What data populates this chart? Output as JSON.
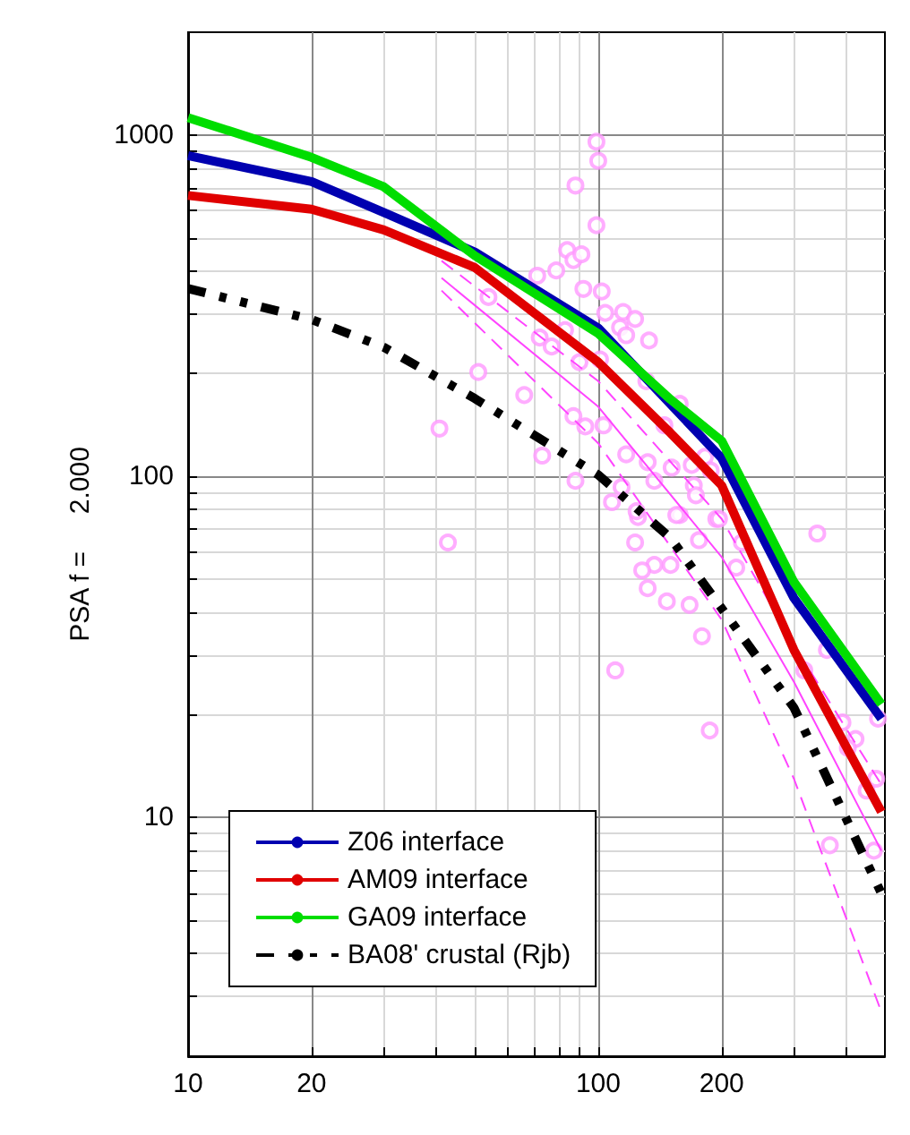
{
  "chart_data": {
    "type": "line",
    "ylabel": "PSA f =     2.000",
    "log": "xy",
    "grid": true,
    "legend": "bottom left",
    "xlim": [
      10,
      500
    ],
    "ylim": [
      2,
      2000
    ],
    "xticks": [
      10,
      20,
      {
        "value": 30,
        "label": null
      },
      {
        "value": 40,
        "label": null
      },
      {
        "value": 50,
        "label": null
      },
      {
        "value": 60,
        "label": null
      },
      {
        "value": 70,
        "label": null
      },
      {
        "value": 80,
        "label": null
      },
      {
        "value": 90,
        "label": null
      },
      100,
      200,
      {
        "value": 300,
        "label": null
      },
      {
        "value": 400,
        "label": null
      }
    ],
    "yticks": [
      {
        "value": 3,
        "label": null
      },
      {
        "value": 4,
        "label": null
      },
      {
        "value": 5,
        "label": null
      },
      {
        "value": 6,
        "label": null
      },
      {
        "value": 7,
        "label": null
      },
      {
        "value": 8,
        "label": null
      },
      {
        "value": 9,
        "label": null
      },
      10,
      {
        "value": 20,
        "label": null
      },
      {
        "value": 30,
        "label": null
      },
      {
        "value": 40,
        "label": null
      },
      {
        "value": 50,
        "label": null
      },
      {
        "value": 60,
        "label": null
      },
      {
        "value": 70,
        "label": null
      },
      {
        "value": 80,
        "label": null
      },
      {
        "value": 90,
        "label": null
      },
      100,
      {
        "value": 200,
        "label": null
      },
      {
        "value": 300,
        "label": null
      },
      {
        "value": 400,
        "label": null
      },
      {
        "value": 500,
        "label": null
      },
      {
        "value": 600,
        "label": null
      },
      {
        "value": 700,
        "label": null
      },
      {
        "value": 800,
        "label": null
      },
      {
        "value": 900,
        "label": null
      },
      1000
    ],
    "series": [
      {
        "type": "scatter",
        "color": "#ff99ff",
        "marker": "circle",
        "x": [
          99,
          100,
          88,
          99,
          84,
          87,
          91,
          79,
          71,
          92,
          102,
          54,
          104,
          115,
          123,
          113,
          117,
          133,
          83,
          72,
          77,
          90,
          101,
          51,
          131,
          158,
          145,
          66,
          41,
          87,
          93,
          103,
          73,
          117,
          132,
          182,
          151,
          169,
          188,
          88,
          114,
          171,
          137,
          173,
          108,
          158,
          194,
          125,
          342,
          43,
          124,
          123,
          155,
          176,
          137,
          128,
          150,
          217,
          197,
          224,
          132,
          147,
          167,
          179,
          110,
          187,
          361,
          318,
          394,
          424,
          406,
          367,
          470,
          451,
          476,
          481
        ],
        "values": [
          955,
          840,
          711,
          544,
          460,
          430,
          447,
          401,
          387,
          354,
          348,
          335,
          301,
          303,
          289,
          273,
          259,
          250,
          268,
          255,
          240,
          216,
          220,
          202,
          190,
          163,
          141,
          173,
          138,
          150,
          140,
          141,
          115,
          116,
          110,
          114,
          106,
          108,
          104,
          97,
          93,
          94,
          97,
          88,
          84,
          77,
          75,
          76,
          68,
          64,
          79,
          64,
          77,
          65,
          55,
          53,
          55,
          54,
          75,
          64,
          47,
          43,
          42,
          34,
          27,
          18,
          31,
          27,
          19,
          17,
          16,
          8.3,
          8,
          12,
          13,
          19.5
        ]
      },
      {
        "type": "line",
        "color": "#ff44ff",
        "marker": "none",
        "line_style": "dashed",
        "x": [
          41.5,
          100,
          200,
          300,
          490
        ],
        "values": [
          428,
          190,
          75,
          32,
          12.5
        ]
      },
      {
        "type": "line",
        "color": "#ff44ff",
        "marker": "none",
        "line_style": "solid",
        "x": [
          41.5,
          100,
          200,
          300,
          490
        ],
        "values": [
          381,
          160,
          58,
          25,
          8
        ]
      },
      {
        "type": "line",
        "color": "#ff44ff",
        "marker": "none",
        "line_style": "dashed",
        "x": [
          41.5,
          100,
          200,
          300,
          490
        ],
        "values": [
          350,
          125,
          38,
          13,
          2.7
        ]
      },
      {
        "name": "Z06 interface",
        "color": "#0000b0",
        "marker": "none",
        "line_style": "solid",
        "x": [
          10,
          20,
          30,
          50,
          100,
          200,
          300,
          490
        ],
        "values": [
          870,
          730,
          593,
          454,
          272,
          113,
          44,
          19.5
        ]
      },
      {
        "name": "AM09 interface",
        "color": "#e00000",
        "marker": "none",
        "line_style": "solid",
        "x": [
          10,
          20,
          30,
          50,
          100,
          150,
          200,
          300,
          490
        ],
        "values": [
          665,
          606,
          527,
          409,
          216,
          134,
          94,
          31,
          10.4
        ]
      },
      {
        "name": "GA09 interface",
        "color": "#00dd00",
        "marker": "none",
        "line_style": "solid",
        "x": [
          10,
          20,
          30,
          50,
          100,
          150,
          200,
          300,
          490
        ],
        "values": [
          1124,
          860,
          705,
          443,
          262,
          168,
          127,
          49,
          21.5
        ]
      },
      {
        "name": "BA08' crustal (Rjb)",
        "color": "#000000",
        "marker": "none",
        "line_style": "dashdot",
        "x": [
          10,
          20,
          30,
          50,
          100,
          150,
          200,
          300,
          490
        ],
        "values": [
          355,
          288,
          239,
          169,
          101,
          66,
          41,
          21,
          6
        ]
      }
    ]
  }
}
